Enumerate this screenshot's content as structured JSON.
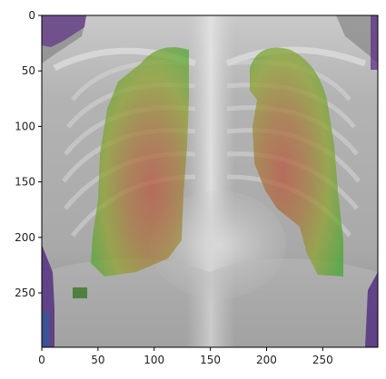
{
  "figure": {
    "axes": {
      "x_ticks": [
        {
          "value": 0,
          "label": "0"
        },
        {
          "value": 50,
          "label": "50"
        },
        {
          "value": 100,
          "label": "100"
        },
        {
          "value": 150,
          "label": "150"
        },
        {
          "value": 200,
          "label": "200"
        },
        {
          "value": 250,
          "label": "250"
        }
      ],
      "y_ticks": [
        {
          "value": 0,
          "label": "0"
        },
        {
          "value": 50,
          "label": "50"
        },
        {
          "value": 100,
          "label": "100"
        },
        {
          "value": 150,
          "label": "150"
        },
        {
          "value": 200,
          "label": "200"
        },
        {
          "value": 250,
          "label": "250"
        }
      ],
      "x_range": [
        0,
        299
      ],
      "y_range": [
        0,
        299
      ],
      "y_direction": "top-to-bottom"
    },
    "image": {
      "subject": "chest-xray",
      "overlay": "lung-heatmap",
      "overlay_colors": [
        "#3fa62e",
        "#a6a82a",
        "#b9533d",
        "#5a2b86"
      ]
    }
  }
}
